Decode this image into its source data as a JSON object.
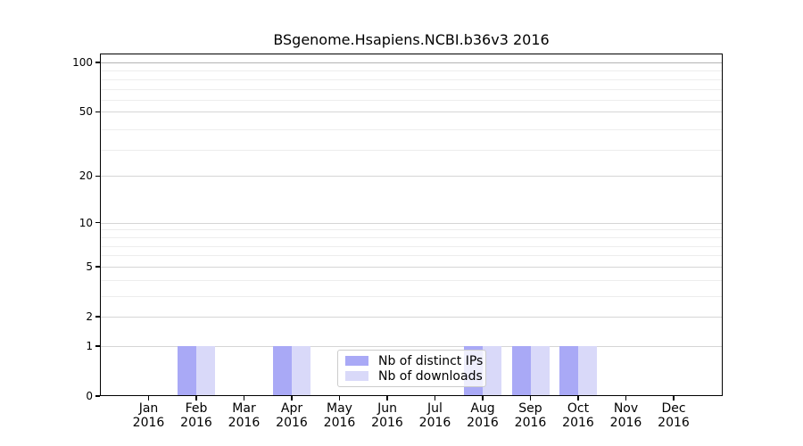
{
  "chart_data": {
    "type": "bar",
    "title": "BSgenome.Hsapiens.NCBI.b36v3 2016",
    "categories": [
      "Jan 2016",
      "Feb 2016",
      "Mar 2016",
      "Apr 2016",
      "May 2016",
      "Jun 2016",
      "Jul 2016",
      "Aug 2016",
      "Sep 2016",
      "Oct 2016",
      "Nov 2016",
      "Dec 2016"
    ],
    "month_labels": [
      "Jan",
      "Feb",
      "Mar",
      "Apr",
      "May",
      "Jun",
      "Jul",
      "Aug",
      "Sep",
      "Oct",
      "Nov",
      "Dec"
    ],
    "year_label": "2016",
    "series": [
      {
        "name": "Nb of distinct IPs",
        "color": "#a9a9f6",
        "values": [
          0,
          1,
          0,
          1,
          0,
          0,
          0,
          1,
          1,
          1,
          0,
          0
        ]
      },
      {
        "name": "Nb of downloads",
        "color": "#d9d9f9",
        "values": [
          0,
          1,
          0,
          1,
          0,
          0,
          0,
          1,
          1,
          1,
          0,
          0
        ]
      }
    ],
    "y_axis": {
      "scale": "log1p",
      "tick_values": [
        0,
        1,
        2,
        5,
        10,
        20,
        50,
        100
      ],
      "tick_labels": [
        "0",
        "1",
        "2",
        "5",
        "10",
        "20",
        "50",
        "100"
      ],
      "minor_gridline_values": [
        3,
        4,
        6,
        7,
        8,
        9,
        29,
        39,
        59,
        69,
        79,
        89
      ],
      "limit_max": 113.3
    },
    "legend": {
      "entries": [
        {
          "label": "Nb of distinct IPs",
          "color": "#a9a9f6"
        },
        {
          "label": "Nb of downloads",
          "color": "#d9d9f9"
        }
      ],
      "position": "lower center"
    },
    "grid": true
  },
  "colors": {
    "bar_distinct_ips": "#a9a9f6",
    "bar_downloads": "#d9d9f9",
    "grid_major": "#d6d6d6",
    "grid_minor": "#ededed",
    "grid_top": "#b3b3b3",
    "spine": "#000000",
    "legend_border": "#cccccc"
  }
}
